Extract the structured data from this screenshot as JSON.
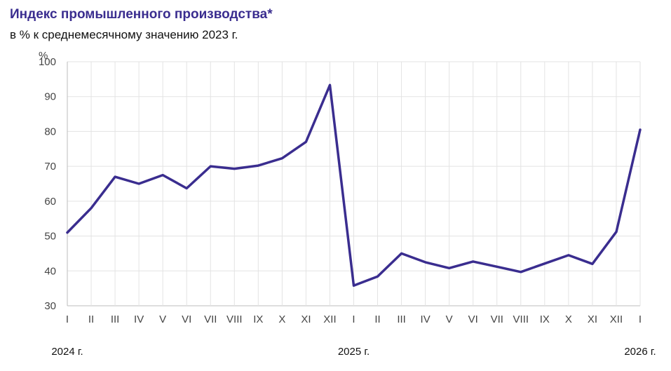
{
  "title": "Индекс промышленного производства*",
  "subtitle": "в % к среднемесячному значению 2023 г.",
  "colors": {
    "line": "#3a2d8f",
    "grid": "#e3e3e3",
    "axis": "#bdbdbd"
  },
  "chart_data": {
    "type": "line",
    "title": "Индекс промышленного производства*",
    "subtitle": "в % к среднемесячному значению 2023 г.",
    "ylabel": "%",
    "ylim": [
      30,
      100
    ],
    "yticks": [
      30,
      40,
      50,
      60,
      70,
      80,
      90,
      100
    ],
    "grid": true,
    "categories": [
      "I",
      "II",
      "III",
      "IV",
      "V",
      "VI",
      "VII",
      "VIII",
      "IX",
      "X",
      "XI",
      "XII",
      "I",
      "II",
      "III",
      "IV",
      "V",
      "VI",
      "VII",
      "VIII",
      "IX",
      "X",
      "XI",
      "XII",
      "I"
    ],
    "years": [
      {
        "label": "2024 г.",
        "index": 0
      },
      {
        "label": "2025 г.",
        "index": 12
      },
      {
        "label": "2026 г.",
        "index": 24
      }
    ],
    "series": [
      {
        "values": [
          51,
          58,
          67,
          65,
          67.5,
          63.7,
          70,
          69.3,
          70.2,
          72.3,
          77,
          93.3,
          35.8,
          38.4,
          45,
          42.5,
          40.8,
          42.7,
          41.2,
          39.7,
          42.1,
          44.5,
          42,
          51.2,
          80.5
        ]
      }
    ]
  }
}
